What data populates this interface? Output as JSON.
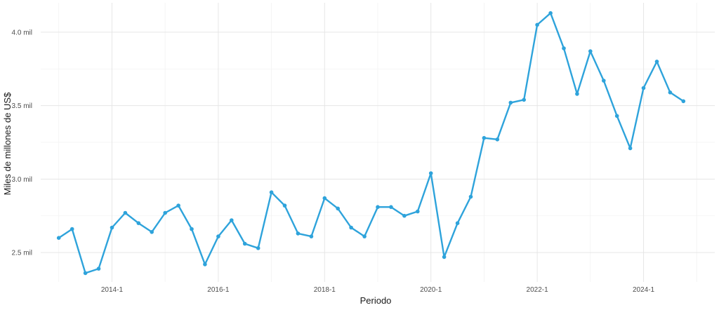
{
  "chart_data": {
    "type": "line",
    "title": "",
    "xlabel": "Periodo",
    "ylabel": "Miles de millones de US$",
    "x_ticks": [
      {
        "label": "2014-1",
        "t": 2014.0
      },
      {
        "label": "2016-1",
        "t": 2016.0
      },
      {
        "label": "2018-1",
        "t": 2018.0
      },
      {
        "label": "2020-1",
        "t": 2020.0
      },
      {
        "label": "2022-1",
        "t": 2022.0
      },
      {
        "label": "2024-1",
        "t": 2024.0
      }
    ],
    "y_ticks": [
      {
        "label": "2.5 mil",
        "v": 2.5
      },
      {
        "label": "3.0 mil",
        "v": 3.0
      },
      {
        "label": "3.5 mil",
        "v": 3.5
      },
      {
        "label": "4.0 mil",
        "v": 4.0
      }
    ],
    "xlim": [
      2012.66,
      2025.34
    ],
    "ylim": [
      2.3,
      4.2
    ],
    "grid": true,
    "color": "#2ea3db",
    "x": [
      "2013-1",
      "2013-2",
      "2013-3",
      "2013-4",
      "2014-1",
      "2014-2",
      "2014-3",
      "2014-4",
      "2015-1",
      "2015-2",
      "2015-3",
      "2015-4",
      "2016-1",
      "2016-2",
      "2016-3",
      "2016-4",
      "2017-1",
      "2017-2",
      "2017-3",
      "2017-4",
      "2018-1",
      "2018-2",
      "2018-3",
      "2018-4",
      "2019-1",
      "2019-2",
      "2019-3",
      "2019-4",
      "2020-1",
      "2020-2",
      "2020-3",
      "2020-4",
      "2021-1",
      "2021-2",
      "2021-3",
      "2021-4",
      "2022-1",
      "2022-2",
      "2022-3",
      "2022-4",
      "2023-1",
      "2023-2",
      "2023-3",
      "2023-4",
      "2024-1",
      "2024-2",
      "2024-3",
      "2024-4"
    ],
    "values": [
      2.6,
      2.66,
      2.36,
      2.39,
      2.67,
      2.77,
      2.7,
      2.64,
      2.77,
      2.82,
      2.66,
      2.42,
      2.61,
      2.72,
      2.56,
      2.53,
      2.91,
      2.82,
      2.63,
      2.61,
      2.87,
      2.8,
      2.67,
      2.61,
      2.81,
      2.81,
      2.75,
      2.78,
      3.04,
      2.47,
      2.7,
      2.88,
      3.28,
      3.27,
      3.52,
      3.54,
      4.05,
      4.13,
      3.89,
      3.58,
      3.87,
      3.67,
      3.43,
      3.21,
      3.62,
      3.8,
      3.59,
      3.53
    ]
  }
}
